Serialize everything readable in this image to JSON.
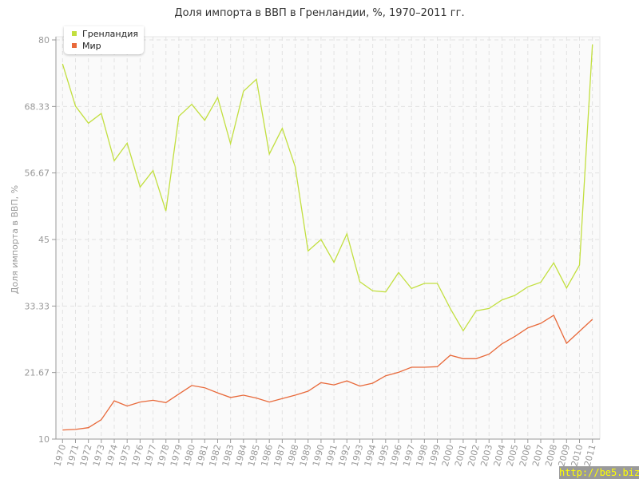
{
  "chart_data": {
    "type": "line",
    "title": "Доля импорта в ВВП в Гренландии, %, 1970–2011 гг.",
    "xlabel": "",
    "ylabel": "Доля импорта в ВВП, %",
    "ylim": [
      10,
      80
    ],
    "yticks": [
      "10",
      "21.67",
      "33.33",
      "45",
      "56.67",
      "68.33",
      "80"
    ],
    "grid": true,
    "legend_position": "top-left",
    "x": [
      1970,
      1971,
      1972,
      1973,
      1974,
      1975,
      1976,
      1977,
      1978,
      1979,
      1980,
      1981,
      1982,
      1983,
      1984,
      1985,
      1986,
      1987,
      1988,
      1989,
      1990,
      1991,
      1992,
      1993,
      1994,
      1995,
      1996,
      1997,
      1998,
      1999,
      2000,
      2001,
      2002,
      2003,
      2004,
      2005,
      2006,
      2007,
      2008,
      2009,
      2010,
      2011
    ],
    "series": [
      {
        "name": "Гренландия",
        "color": "#c2df3f",
        "values": [
          75.8,
          68.4,
          65.4,
          67.1,
          58.8,
          61.9,
          54.2,
          57.1,
          50.0,
          66.6,
          68.7,
          65.9,
          69.9,
          61.8,
          71.0,
          73.1,
          60.0,
          64.5,
          57.8,
          43.0,
          45.0,
          41.0,
          46.0,
          37.6,
          36.0,
          35.8,
          39.2,
          36.4,
          37.3,
          37.3,
          32.9,
          29.0,
          32.5,
          32.9,
          34.4,
          35.2,
          36.7,
          37.5,
          40.9,
          36.5,
          40.5,
          79.2
        ]
      },
      {
        "name": "Мир",
        "color": "#e8693a",
        "values": [
          11.6,
          11.7,
          12.0,
          13.4,
          16.7,
          15.8,
          16.5,
          16.8,
          16.4,
          17.9,
          19.4,
          19.0,
          18.1,
          17.3,
          17.7,
          17.2,
          16.5,
          17.1,
          17.7,
          18.4,
          19.9,
          19.5,
          20.2,
          19.3,
          19.8,
          21.1,
          21.7,
          22.6,
          22.6,
          22.7,
          24.7,
          24.1,
          24.1,
          24.9,
          26.7,
          28.0,
          29.5,
          30.3,
          31.7,
          26.8,
          28.9,
          31.0
        ]
      }
    ]
  },
  "watermark": "http://be5.biz/"
}
